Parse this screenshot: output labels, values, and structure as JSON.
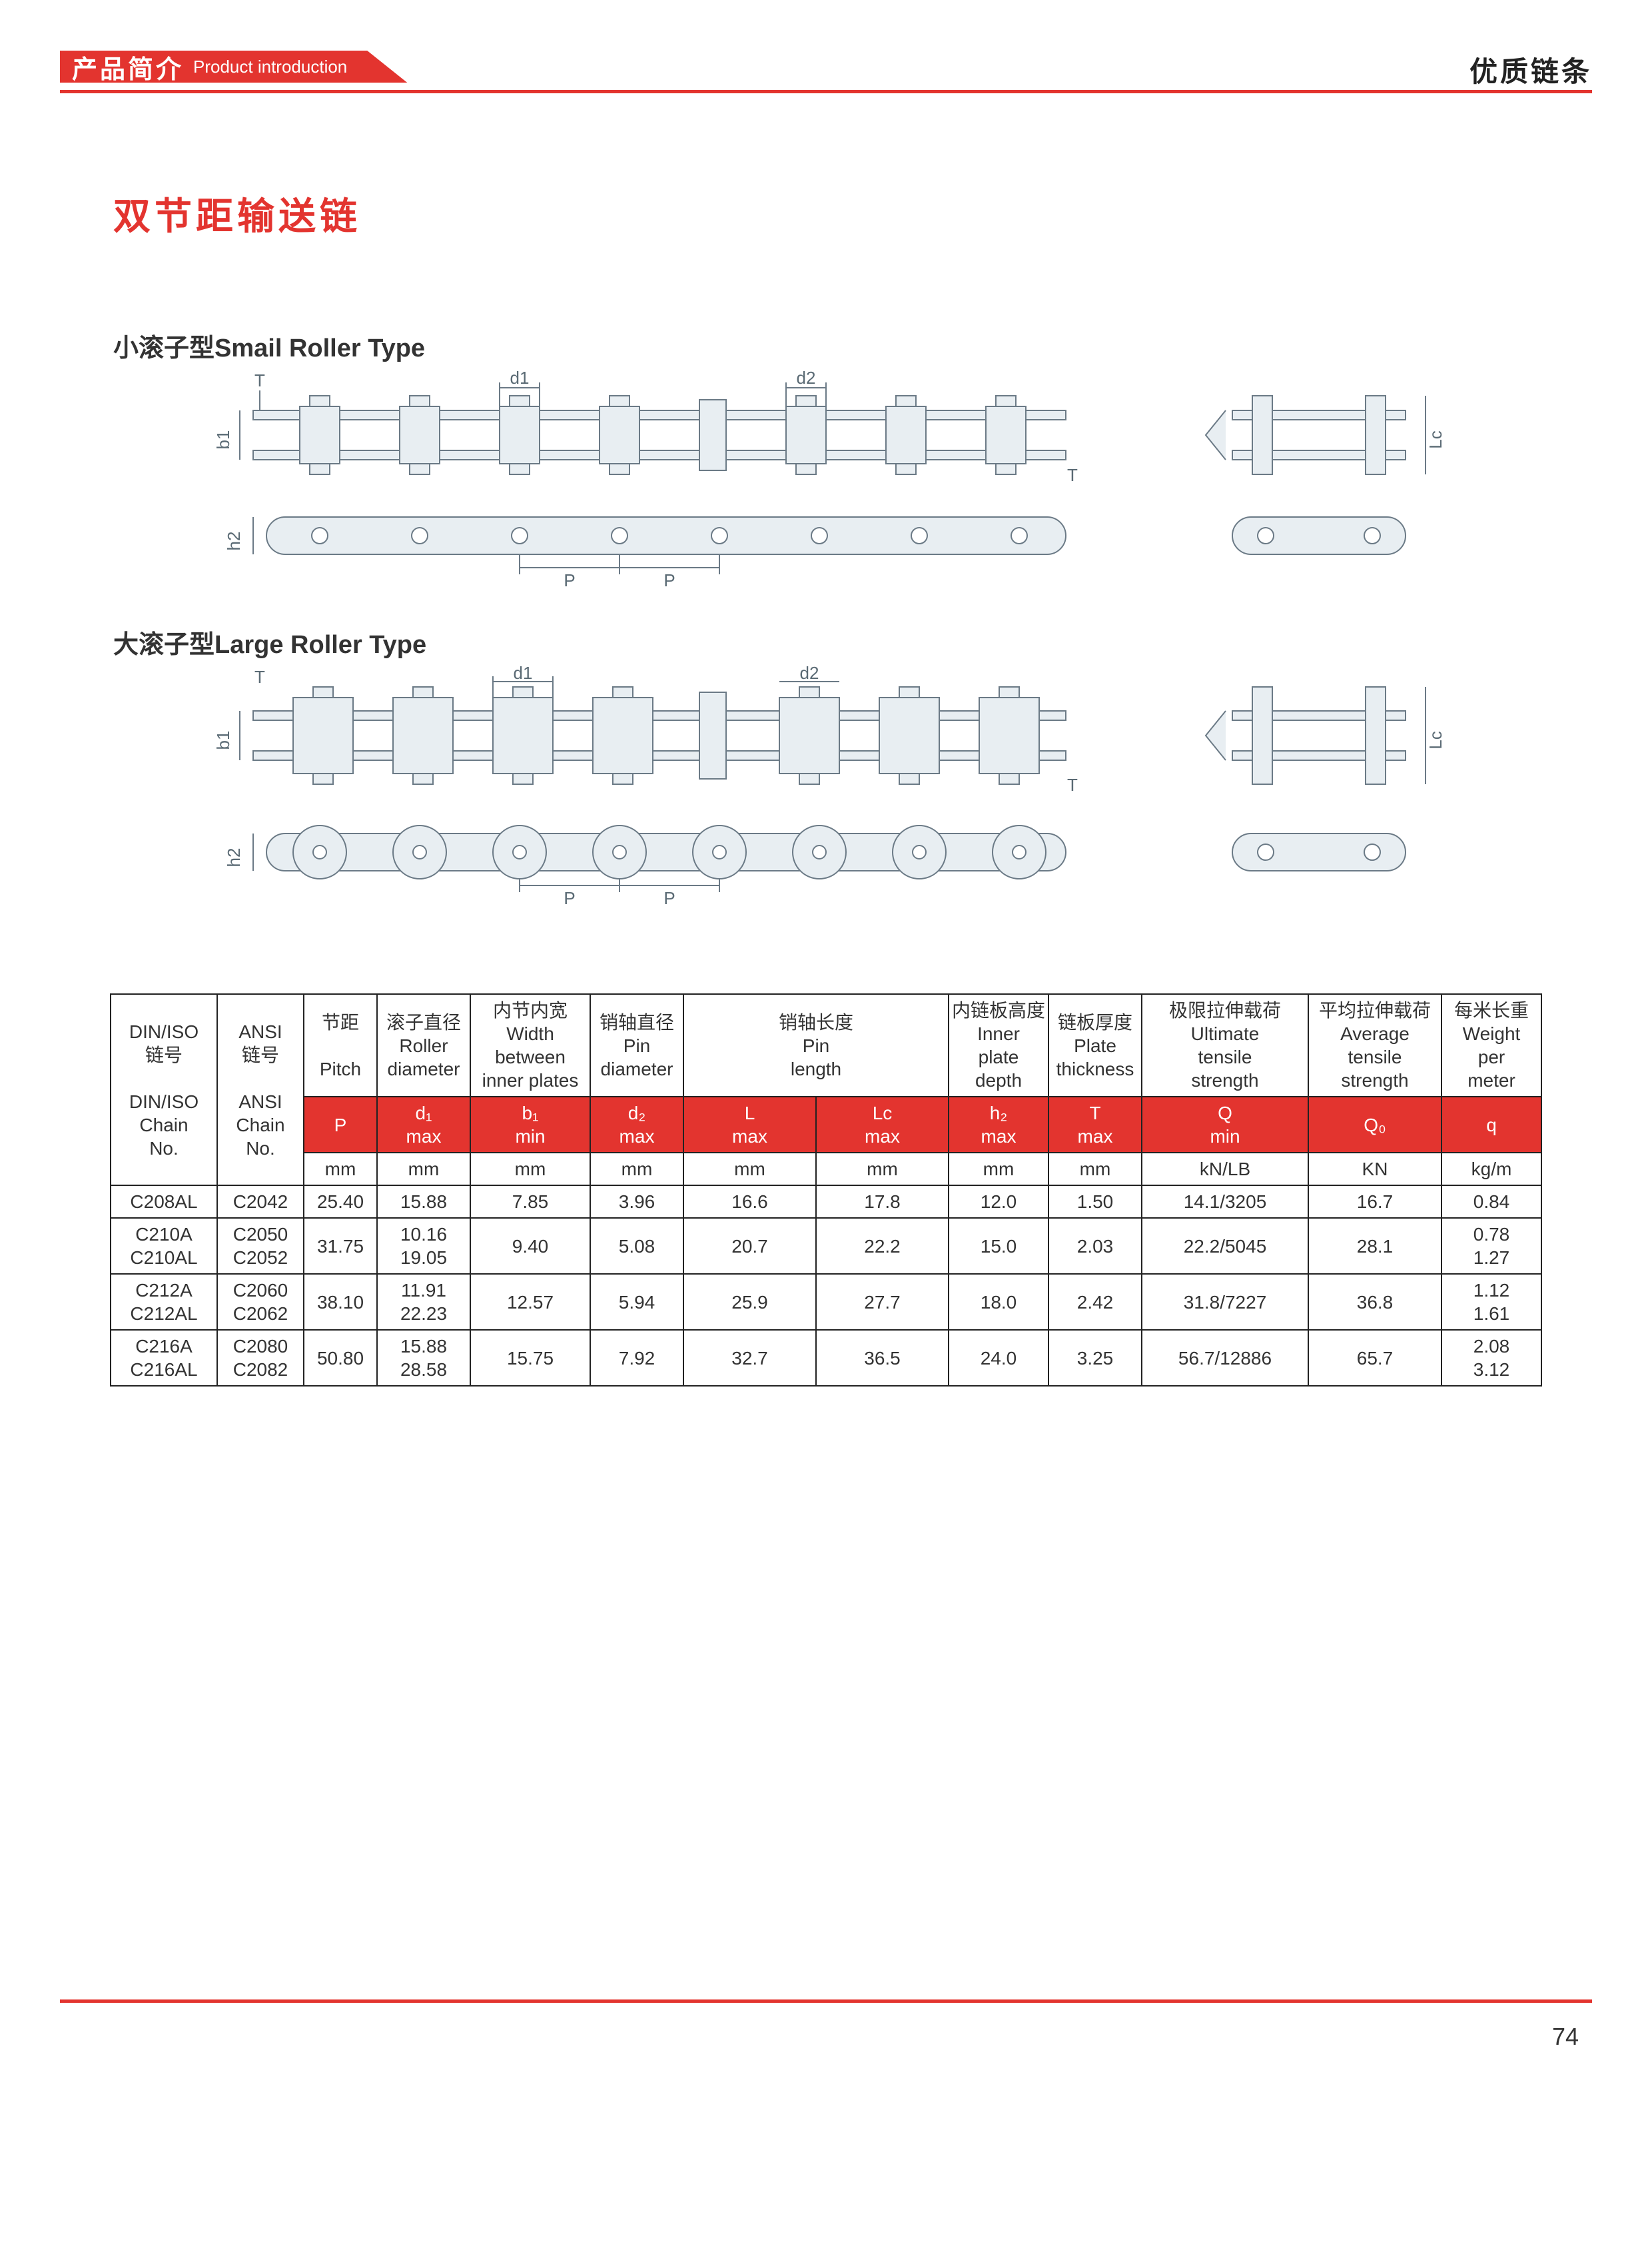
{
  "header": {
    "tab_cn": "产品简介",
    "tab_en": "Product introduction",
    "brand": "优质链条"
  },
  "title": "双节距输送链",
  "section_small": "小滚子型Smail Roller Type",
  "section_large": "大滚子型Large Roller Type",
  "dim_labels": {
    "P": "P",
    "d1": "d1",
    "d2": "d2",
    "b1": "b1",
    "h2": "h2",
    "T": "T",
    "Lc": "Lc"
  },
  "diagram_style": {
    "stroke": "#6b7a86",
    "fill": "#e8eef2",
    "text": "#5a6a74",
    "stroke_width": 2,
    "label_fontsize": 26
  },
  "table": {
    "head1": {
      "c0": "DIN/ISO\n链号\n\nDIN/ISO\nChain\nNo.",
      "c1": "ANSI\n链号\n\nANSI\nChain\nNo.",
      "c2": "节距\n\nPitch",
      "c3": "滚子直径\nRoller\ndiameter",
      "c4": "内节内宽\nWidth\nbetween\ninner plates",
      "c5": "销轴直径\nPin\ndiameter",
      "c6": "销轴长度\nPin\nlength",
      "c7": "内链板高度\nInner\nplate\ndepth",
      "c8": "链板厚度\nPlate\nthickness",
      "c9": "极限拉伸载荷\nUltimate\ntensile\nstrength",
      "c10": "平均拉伸载荷\nAverage\ntensile\nstrength",
      "c11": "每米长重\nWeight\nper\nmeter"
    },
    "head2": {
      "c2": "P",
      "c3": "d₁\nmax",
      "c4": "b₁\nmin",
      "c5": "d₂\nmax",
      "c6a": "L\nmax",
      "c6b": "Lc\nmax",
      "c7": "h₂\nmax",
      "c8": "T\nmax",
      "c9": "Q\nmin",
      "c10": "Q₀",
      "c11": "q"
    },
    "head3": {
      "c2": "mm",
      "c3": "mm",
      "c4": "mm",
      "c5": "mm",
      "c6a": "mm",
      "c6b": "mm",
      "c7": "mm",
      "c8": "mm",
      "c9": "kN/LB",
      "c10": "KN",
      "c11": "kg/m"
    },
    "rows": [
      {
        "din": "C208AL",
        "ansi": "C2042",
        "p": "25.40",
        "d1": "15.88",
        "b1": "7.85",
        "d2": "3.96",
        "L": "16.6",
        "Lc": "17.8",
        "h2": "12.0",
        "T": "1.50",
        "Q": "14.1/3205",
        "Q0": "16.7",
        "q": "0.84"
      },
      {
        "din": "C210A\nC210AL",
        "ansi": "C2050\nC2052",
        "p": "31.75",
        "d1": "10.16\n19.05",
        "b1": "9.40",
        "d2": "5.08",
        "L": "20.7",
        "Lc": "22.2",
        "h2": "15.0",
        "T": "2.03",
        "Q": "22.2/5045",
        "Q0": "28.1",
        "q": "0.78\n1.27"
      },
      {
        "din": "C212A\nC212AL",
        "ansi": "C2060\nC2062",
        "p": "38.10",
        "d1": "11.91\n22.23",
        "b1": "12.57",
        "d2": "5.94",
        "L": "25.9",
        "Lc": "27.7",
        "h2": "18.0",
        "T": "2.42",
        "Q": "31.8/7227",
        "Q0": "36.8",
        "q": "1.12\n1.61"
      },
      {
        "din": "C216A\nC216AL",
        "ansi": "C2080\nC2082",
        "p": "50.80",
        "d1": "15.88\n28.58",
        "b1": "15.75",
        "d2": "7.92",
        "L": "32.7",
        "Lc": "36.5",
        "h2": "24.0",
        "T": "3.25",
        "Q": "56.7/12886",
        "Q0": "65.7",
        "q": "2.08\n3.12"
      }
    ]
  },
  "page_number": "74"
}
